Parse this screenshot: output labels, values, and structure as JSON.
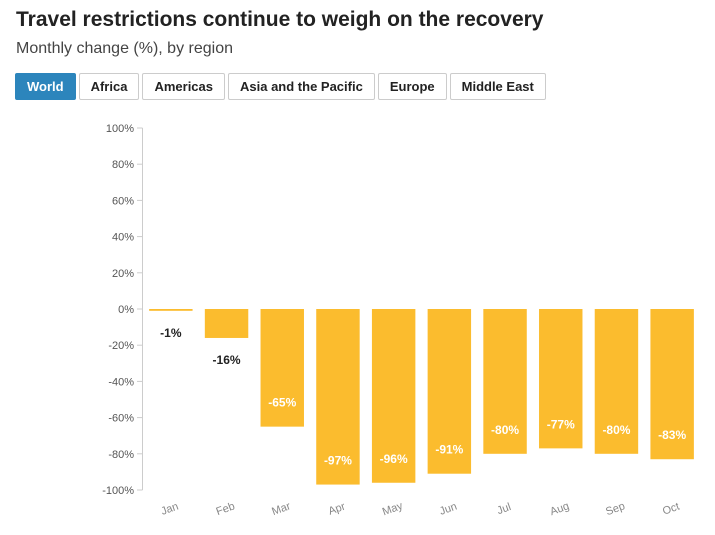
{
  "header": {
    "title": "Travel restrictions continue to weigh on the recovery",
    "subtitle": "Monthly change (%), by region"
  },
  "tabs": [
    {
      "label": "World",
      "active": true
    },
    {
      "label": "Africa",
      "active": false
    },
    {
      "label": "Americas",
      "active": false
    },
    {
      "label": "Asia and the Pacific",
      "active": false
    },
    {
      "label": "Europe",
      "active": false
    },
    {
      "label": "Middle East",
      "active": false
    }
  ],
  "colors": {
    "bar": "#fbbc2e",
    "tab_active": "#2c85bc",
    "label_inside": "#ffffff",
    "label_outside": "#222222"
  },
  "chart_data": {
    "type": "bar",
    "title": "Travel restrictions continue to weigh on the recovery",
    "subtitle": "Monthly change (%), by region",
    "categories": [
      "Jan",
      "Feb",
      "Mar",
      "Apr",
      "May",
      "Jun",
      "Jul",
      "Aug",
      "Sep",
      "Oct"
    ],
    "values": [
      -1,
      -16,
      -65,
      -97,
      -96,
      -91,
      -80,
      -77,
      -80,
      -83
    ],
    "data_labels": [
      "-1%",
      "-16%",
      "-65%",
      "-97%",
      "-96%",
      "-91%",
      "-80%",
      "-77%",
      "-80%",
      "-83%"
    ],
    "ylim": [
      -100,
      100
    ],
    "yticks": [
      100,
      80,
      60,
      40,
      20,
      0,
      -20,
      -40,
      -60,
      -80,
      -100
    ],
    "ytick_labels": [
      "100%",
      "80%",
      "60%",
      "40%",
      "20%",
      "0%",
      "-20%",
      "-40%",
      "-60%",
      "-80%",
      "-100%"
    ],
    "xlabel": "",
    "ylabel": "",
    "grid": false,
    "legend": "none"
  }
}
